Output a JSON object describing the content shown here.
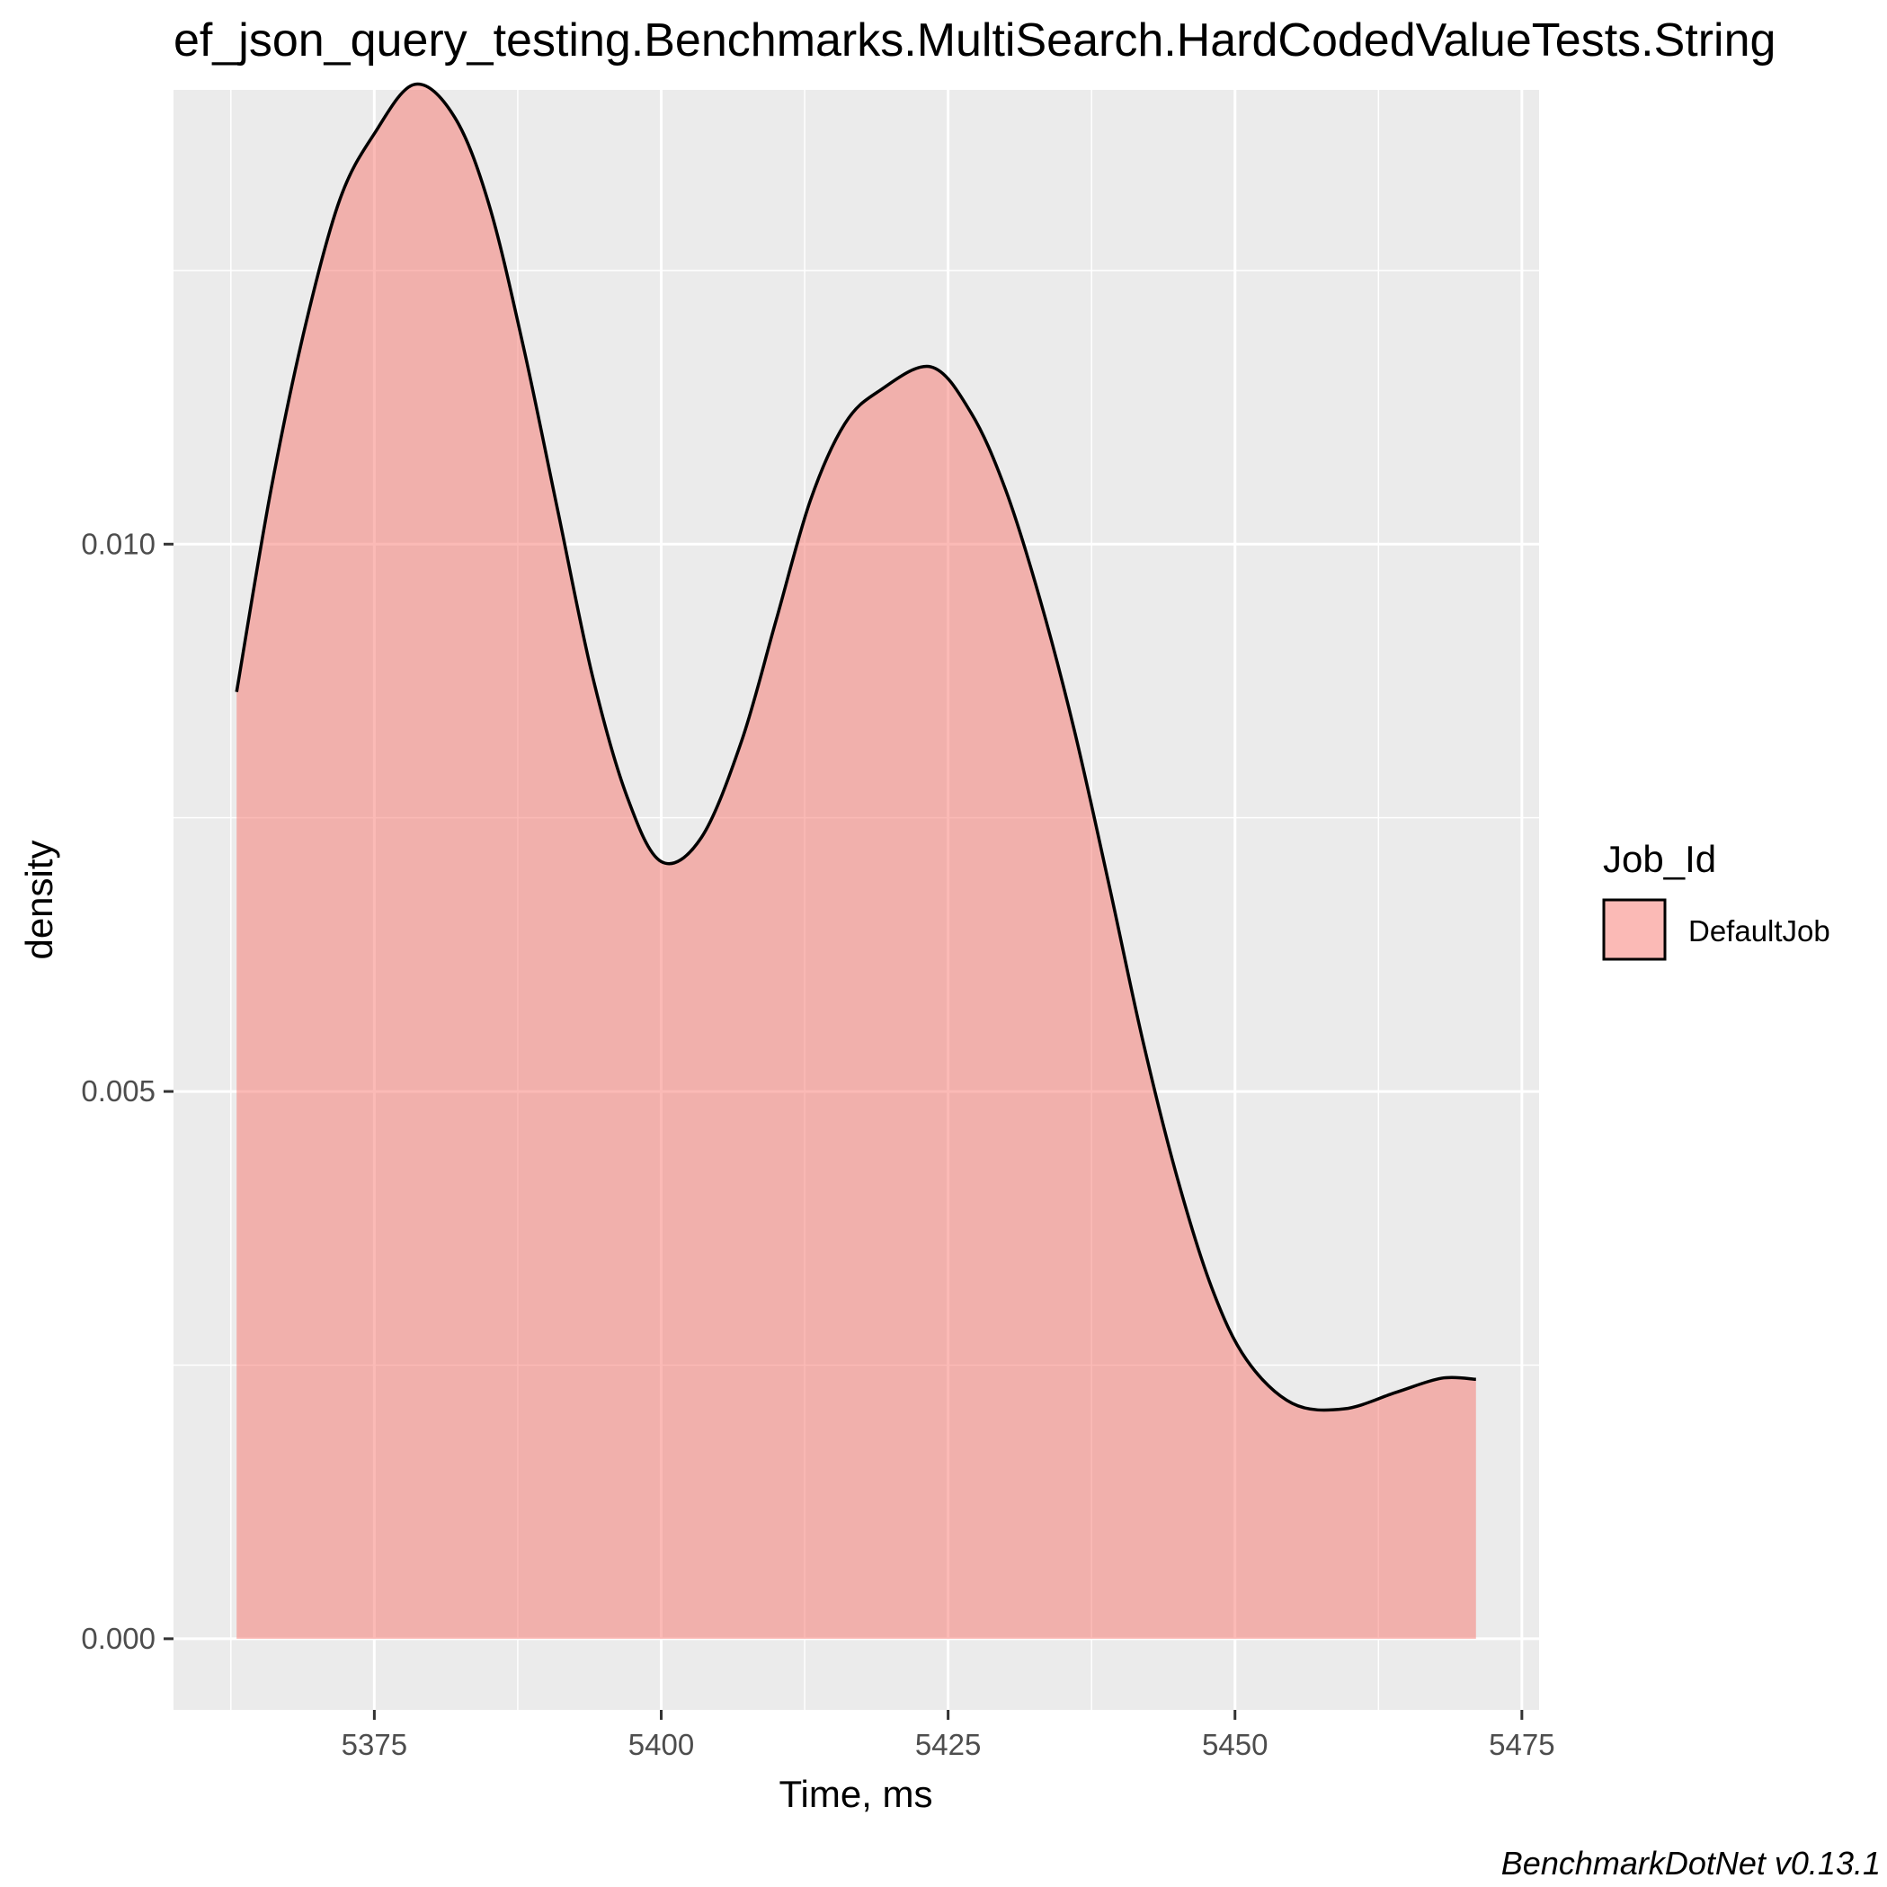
{
  "chart_data": {
    "type": "area",
    "title": "ef_json_query_testing.Benchmarks.MultiSearch.HardCodedValueTests.String",
    "xlabel": "Time, ms",
    "ylabel": "density",
    "xlim": [
      5357.5,
      5476.5
    ],
    "ylim": [
      -0.00065,
      0.01415
    ],
    "x_ticks": [
      5375,
      5400,
      5425,
      5450,
      5475
    ],
    "x_tick_labels": [
      "5375",
      "5400",
      "5425",
      "5450",
      "5475"
    ],
    "y_ticks": [
      0.0,
      0.005,
      0.01
    ],
    "y_tick_labels": [
      "0.000",
      "0.005",
      "0.010"
    ],
    "grid": true,
    "legend": {
      "title": "Job_Id",
      "position": "right"
    },
    "series": [
      {
        "name": "DefaultJob",
        "fill": "#F8766D",
        "fill_opacity": 0.5,
        "line_color": "#000000",
        "x": [
          5363.0,
          5366.0,
          5369.0,
          5372.0,
          5375.0,
          5378.5,
          5382.0,
          5385.0,
          5388.0,
          5391.0,
          5394.0,
          5397.0,
          5400.0,
          5403.5,
          5407.0,
          5410.0,
          5413.0,
          5416.0,
          5419.0,
          5423.5,
          5427.0,
          5430.0,
          5433.0,
          5436.0,
          5439.0,
          5442.0,
          5445.0,
          5448.0,
          5451.0,
          5455.0,
          5459.5,
          5464.0,
          5468.0,
          5471.0
        ],
        "y": [
          0.00865,
          0.0105,
          0.012,
          0.01315,
          0.01375,
          0.0142,
          0.0139,
          0.0131,
          0.0118,
          0.0103,
          0.0088,
          0.0077,
          0.0071,
          0.00732,
          0.0082,
          0.0093,
          0.0104,
          0.0111,
          0.0114,
          0.01162,
          0.0112,
          0.0105,
          0.0095,
          0.0083,
          0.0069,
          0.00545,
          0.0042,
          0.0032,
          0.00255,
          0.00215,
          0.0021,
          0.00225,
          0.00238,
          0.00237
        ]
      }
    ]
  },
  "caption": "BenchmarkDotNet v0.13.1"
}
